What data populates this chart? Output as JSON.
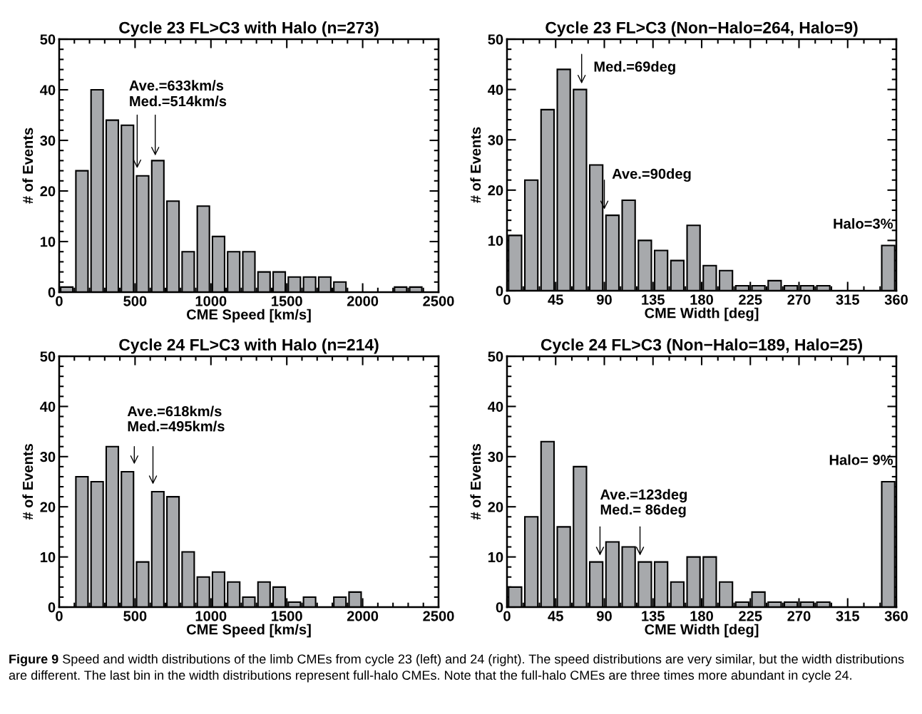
{
  "chart_data": [
    {
      "type": "histogram",
      "title": "Cycle 23 FL>C3 with Halo (n=273)",
      "xlabel": "CME Speed [km/s]",
      "ylabel": "# of Events",
      "color": "#a7a9ac",
      "bins": [
        0,
        100,
        200,
        300,
        400,
        500,
        600,
        700,
        800,
        900,
        1000,
        1100,
        1200,
        1300,
        1400,
        1500,
        1600,
        1700,
        1800,
        1900,
        2000,
        2100,
        2200,
        2300,
        2400
      ],
      "values": [
        1,
        24,
        40,
        34,
        33,
        23,
        26,
        18,
        8,
        17,
        11,
        8,
        8,
        4,
        4,
        3,
        3,
        3,
        2,
        0,
        0,
        0,
        1,
        1
      ],
      "xlim": [
        0,
        2500
      ],
      "xticks": [
        0,
        500,
        1000,
        1500,
        2000,
        2500
      ],
      "ylim": [
        0,
        50
      ],
      "yticks": [
        0,
        10,
        20,
        30,
        40,
        50
      ],
      "annotations": [
        "Ave.=633km/s",
        "Med.=514km/s"
      ]
    },
    {
      "type": "histogram",
      "title": "Cycle 23 FL>C3 (Non−Halo=264, Halo=9)",
      "xlabel": "CME Width [deg]",
      "ylabel": "# of Events",
      "color": "#a7a9ac",
      "bins": [
        0,
        15,
        30,
        45,
        60,
        75,
        90,
        105,
        120,
        135,
        150,
        165,
        180,
        195,
        210,
        225,
        240,
        255,
        270,
        285,
        300,
        315,
        330,
        345,
        360
      ],
      "values": [
        11,
        22,
        36,
        44,
        40,
        25,
        15,
        18,
        10,
        8,
        6,
        13,
        5,
        4,
        1,
        1,
        2,
        1,
        1,
        1,
        0,
        0,
        0,
        9
      ],
      "xlim": [
        0,
        360
      ],
      "xticks": [
        0,
        45,
        90,
        135,
        180,
        225,
        270,
        315,
        360
      ],
      "ylim": [
        0,
        50
      ],
      "yticks": [
        0,
        10,
        20,
        30,
        40,
        50
      ],
      "annotations": [
        {
          "text": "Med.=69deg",
          "x": 69,
          "y": 40
        },
        {
          "text": "Ave.=90deg",
          "x": 90,
          "y": 15
        },
        {
          "text": "Halo=3%",
          "x": 352.5,
          "y": 9
        }
      ]
    },
    {
      "type": "histogram",
      "title": "Cycle 24 FL>C3 with Halo (n=214)",
      "xlabel": "CME Speed [km/s]",
      "ylabel": "# of Events",
      "color": "#a7a9ac",
      "bins": [
        0,
        100,
        200,
        300,
        400,
        500,
        600,
        700,
        800,
        900,
        1000,
        1100,
        1200,
        1300,
        1400,
        1500,
        1600,
        1700,
        1800,
        1900,
        2000,
        2100,
        2200,
        2300,
        2400
      ],
      "values": [
        0,
        26,
        25,
        32,
        27,
        9,
        23,
        22,
        11,
        6,
        7,
        5,
        2,
        5,
        4,
        1,
        2,
        0,
        2,
        3,
        0,
        0,
        0,
        0
      ],
      "xlim": [
        0,
        2500
      ],
      "xticks": [
        0,
        500,
        1000,
        1500,
        2000,
        2500
      ],
      "ylim": [
        0,
        50
      ],
      "yticks": [
        0,
        10,
        20,
        30,
        40,
        50
      ],
      "annotations": [
        "Ave.=618km/s",
        "Med.=495km/s"
      ]
    },
    {
      "type": "histogram",
      "title": "Cycle 24 FL>C3 (Non−Halo=189, Halo=25)",
      "xlabel": "CME Width [deg]",
      "ylabel": "# of Events",
      "color": "#a7a9ac",
      "bins": [
        0,
        15,
        30,
        45,
        60,
        75,
        90,
        105,
        120,
        135,
        150,
        165,
        180,
        195,
        210,
        225,
        240,
        255,
        270,
        285,
        300,
        315,
        330,
        345,
        360
      ],
      "values": [
        4,
        18,
        33,
        16,
        28,
        9,
        13,
        12,
        9,
        9,
        5,
        10,
        10,
        5,
        1,
        3,
        1,
        1,
        1,
        1,
        0,
        0,
        0,
        25
      ],
      "xlim": [
        0,
        360
      ],
      "xticks": [
        0,
        45,
        90,
        135,
        180,
        225,
        270,
        315,
        360
      ],
      "ylim": [
        0,
        50
      ],
      "yticks": [
        0,
        10,
        20,
        30,
        40,
        50
      ],
      "annotations": [
        "Ave.=123deg",
        "Med.= 86deg",
        {
          "text": "Halo= 9%",
          "x": 352.5,
          "y": 25
        },
        "Figure 9",
        "Speed and width distributions of the limb CMEs from cycle 23 (left) and 24 (right). The speed distributions are very similar, but the width distributions are different. The last bin in the width distributions represent full-halo CMEs. Note that the full-halo CMEs are three times more abundant in cycle 24."
      ]
    }
  ]
}
